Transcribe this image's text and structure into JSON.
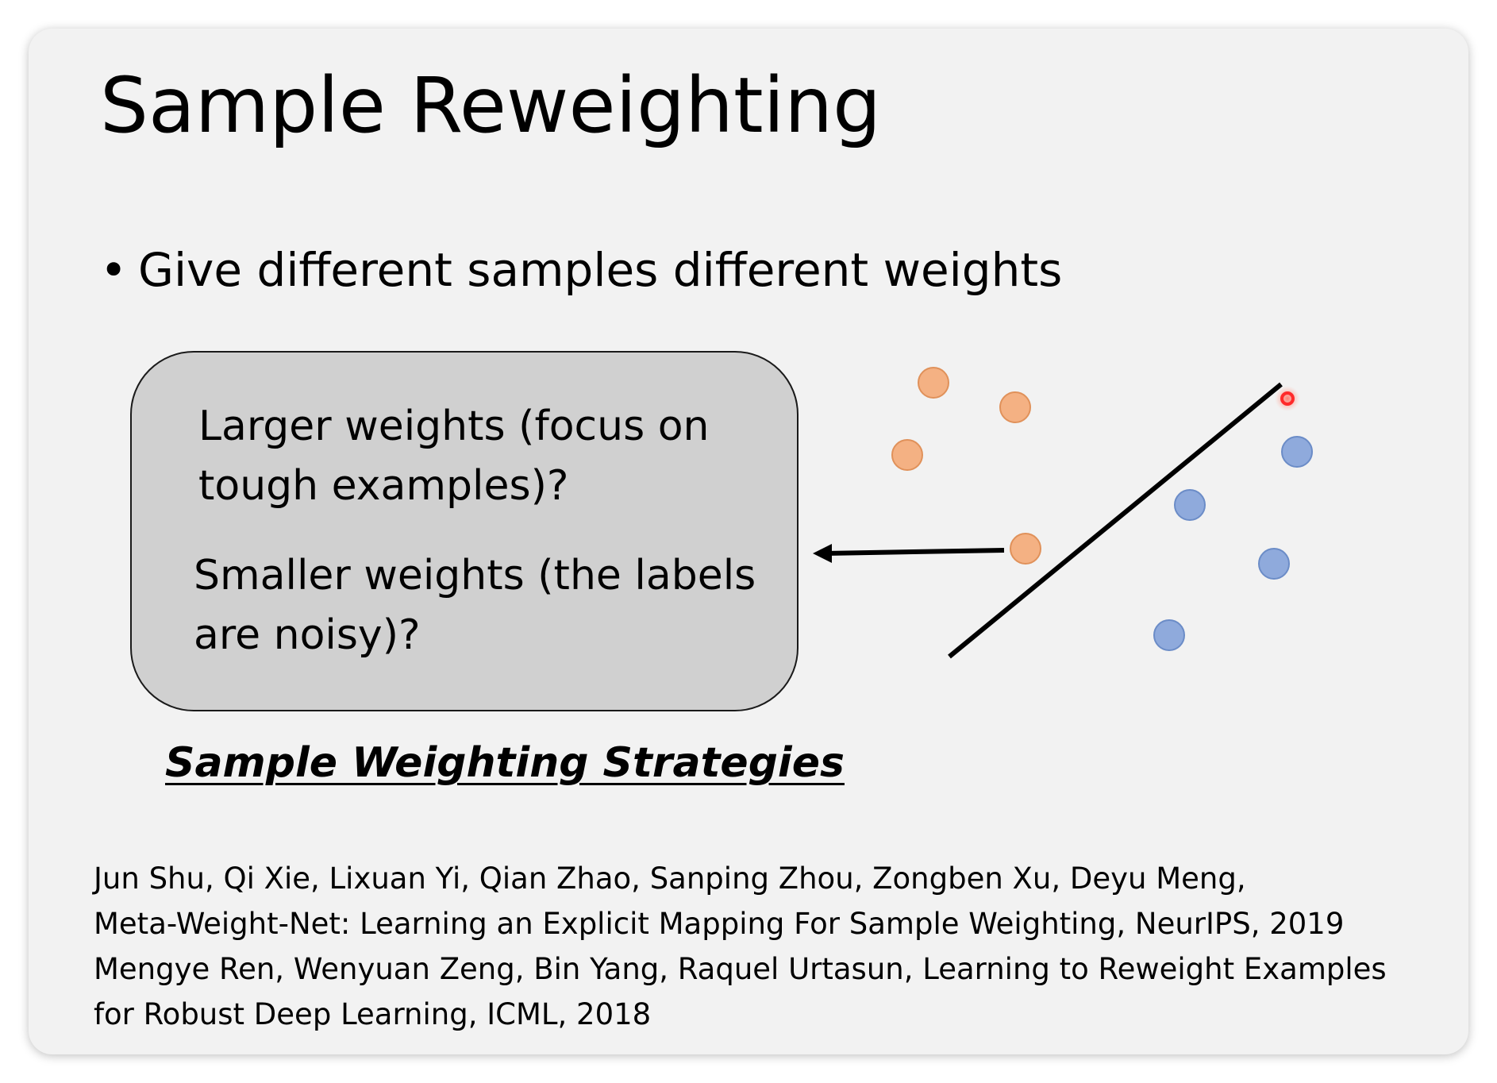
{
  "slide": {
    "title": "Sample Reweighting",
    "bullet_symbol": "•",
    "bullet": "Give different samples different weights",
    "box": {
      "line1": "Larger weights (focus on tough examples)?",
      "line2": "Smaller weights (the labels are noisy)?"
    },
    "caption": "Sample Weighting Strategies",
    "references": [
      "Jun Shu, Qi Xie, Lixuan Yi, Qian Zhao, Sanping Zhou, Zongben Xu, Deyu Meng,",
      "Meta-Weight-Net: Learning an Explicit Mapping For Sample Weighting, NeurIPS, 2019",
      "Mengye Ren, Wenyuan Zeng, Bin Yang, Raquel Urtasun, Learning to Reweight Examples",
      "for Robust Deep Learning, ICML, 2018"
    ]
  },
  "colors": {
    "class_a_fill": "#f4b183",
    "class_a_stroke": "#e0915a",
    "class_b_fill": "#8faadc",
    "class_b_stroke": "#6b8cc7",
    "box_fill": "#d0d0d0",
    "pointer_dot": "#ff2a2a"
  },
  "diagram": {
    "class_a_count": 4,
    "class_b_count": 4,
    "icons": [
      "arrow-left-icon",
      "laser-pointer-icon"
    ]
  }
}
